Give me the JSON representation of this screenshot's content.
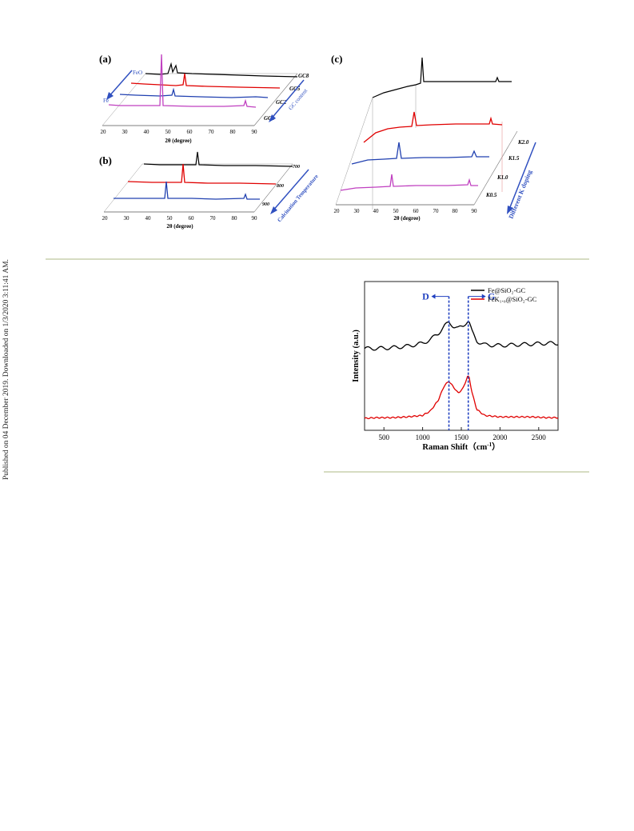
{
  "margin_note": "Published on 04 December 2019. Downloaded on 1/3/2020 3:11:41 AM.",
  "figure_top": {
    "panel_a": {
      "label": "(a)",
      "xlabel": "2θ (degree)",
      "x_ticks": [
        "20",
        "30",
        "40",
        "50",
        "60",
        "70",
        "80",
        "90"
      ],
      "series": [
        "GC8",
        "GC5",
        "GC2",
        "GC1"
      ],
      "series_colors": [
        "#000000",
        "#e00000",
        "#2040b0",
        "#c040c0"
      ],
      "arrow_label": "GC content",
      "annotations": [
        "FeO",
        "Fe"
      ]
    },
    "panel_b": {
      "label": "(b)",
      "xlabel": "2θ (degree)",
      "x_ticks": [
        "20",
        "30",
        "40",
        "50",
        "60",
        "70",
        "80",
        "90"
      ],
      "series": [
        "700",
        "800",
        "900"
      ],
      "series_colors": [
        "#000000",
        "#e00000",
        "#2040b0"
      ],
      "arrow_label": "Calcination Temperature"
    },
    "panel_c": {
      "label": "(c)",
      "xlabel": "2θ (degree)",
      "x_ticks": [
        "20",
        "30",
        "40",
        "50",
        "60",
        "70",
        "80",
        "90"
      ],
      "series": [
        "K2.0",
        "K1.5",
        "K1.0",
        "K0.5"
      ],
      "series_colors": [
        "#000000",
        "#e00000",
        "#2040b0",
        "#c040c0"
      ],
      "arrow_label": "Different K doping"
    }
  },
  "figure_raman": {
    "xlabel": "Raman Shift (cm⁻¹)",
    "xlabel_main": "Raman Shift（",
    "xlabel_unit": "cm",
    "xlabel_sup": "-1",
    "xlabel_close": "）",
    "ylabel": "Intensity (a.u.)",
    "x_ticks": [
      "500",
      "1000",
      "1500",
      "2000",
      "2500"
    ],
    "legend": [
      "Fe@SiO₂-GC",
      "FeK₁.₀@SiO₂-GC"
    ],
    "peak_labels": [
      "D",
      "G"
    ]
  },
  "chart_data": {
    "type": "line",
    "title": "",
    "xlabel": "Raman Shift (cm⁻¹)",
    "ylabel": "Intensity (a.u.)",
    "xlim": [
      250,
      2750
    ],
    "ylim": [
      0,
      1
    ],
    "grid": false,
    "legend_position": "top-right",
    "series": [
      {
        "name": "Fe@SiO₂-GC",
        "color": "#000000",
        "x": [
          250,
          400,
          600,
          800,
          1000,
          1100,
          1200,
          1280,
          1340,
          1400,
          1460,
          1520,
          1580,
          1600,
          1640,
          1700,
          1800,
          2000,
          2200,
          2400,
          2600,
          2750
        ],
        "y": [
          0.55,
          0.55,
          0.555,
          0.565,
          0.585,
          0.61,
          0.65,
          0.7,
          0.725,
          0.7,
          0.685,
          0.7,
          0.735,
          0.73,
          0.66,
          0.6,
          0.575,
          0.57,
          0.575,
          0.58,
          0.585,
          0.585
        ]
      },
      {
        "name": "FeK₁.₀@SiO₂-GC",
        "color": "#e00000",
        "x": [
          250,
          400,
          600,
          800,
          1000,
          1100,
          1200,
          1280,
          1340,
          1400,
          1460,
          1520,
          1580,
          1600,
          1640,
          1700,
          1800,
          2000,
          2200,
          2400,
          2600,
          2750
        ],
        "y": [
          0.08,
          0.085,
          0.085,
          0.09,
          0.1,
          0.13,
          0.2,
          0.3,
          0.33,
          0.29,
          0.25,
          0.28,
          0.36,
          0.36,
          0.25,
          0.14,
          0.1,
          0.09,
          0.09,
          0.09,
          0.085,
          0.085
        ]
      }
    ],
    "annotations": [
      {
        "text": "D",
        "x": 1340
      },
      {
        "text": "G",
        "x": 1590
      }
    ]
  }
}
